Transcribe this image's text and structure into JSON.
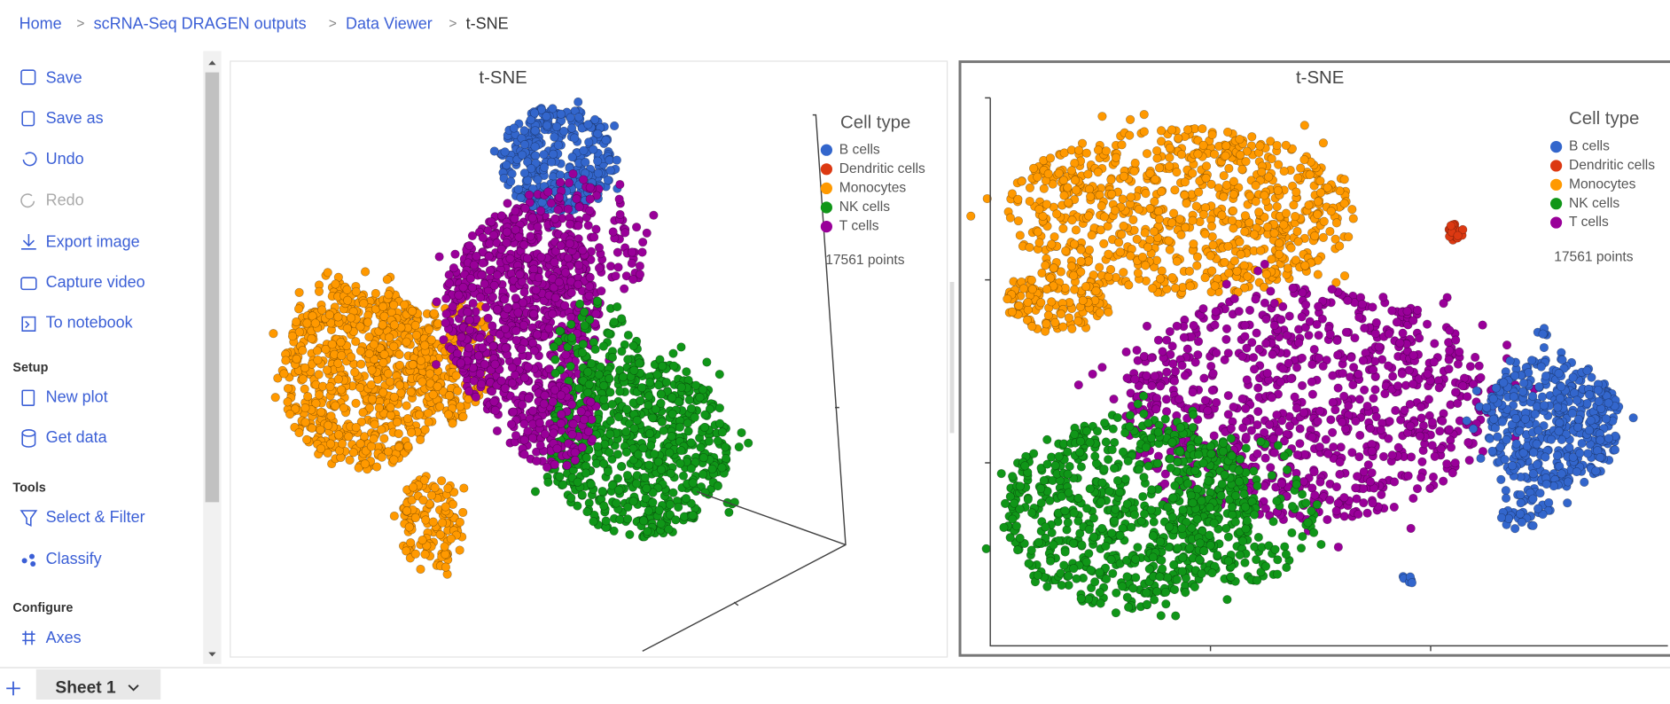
{
  "breadcrumb": [
    "Home",
    "scRNA-Seq DRAGEN outputs",
    "Data Viewer",
    "t-SNE"
  ],
  "sidebar": {
    "items": [
      "Save",
      "Save as",
      "Undo",
      "Redo",
      "Export image",
      "Capture video",
      "To notebook"
    ],
    "sections": [
      {
        "title": "Setup",
        "items": [
          "New plot",
          "Get data"
        ]
      },
      {
        "title": "Tools",
        "items": [
          "Select & Filter",
          "Classify"
        ]
      },
      {
        "title": "Configure",
        "items": [
          "Axes"
        ]
      }
    ]
  },
  "plots": [
    {
      "title": "t-SNE",
      "legend": {
        "title": "Cell type",
        "entries": [
          {
            "name": "B cells",
            "color": "#3366cc"
          },
          {
            "name": "Dendritic cells",
            "color": "#dc3912"
          },
          {
            "name": "Monocytes",
            "color": "#ff9900"
          },
          {
            "name": "NK cells",
            "color": "#109618"
          },
          {
            "name": "T cells",
            "color": "#990099"
          }
        ]
      },
      "points_label": "17561 points"
    },
    {
      "title": "t-SNE",
      "legend": {
        "title": "Cell type",
        "entries": [
          {
            "name": "B cells",
            "color": "#3366cc"
          },
          {
            "name": "Dendritic cells",
            "color": "#dc3912"
          },
          {
            "name": "Monocytes",
            "color": "#ff9900"
          },
          {
            "name": "NK cells",
            "color": "#109618"
          },
          {
            "name": "T cells",
            "color": "#990099"
          }
        ]
      },
      "points_label": "17561 points"
    }
  ],
  "sheet_tab": "Sheet 1"
}
